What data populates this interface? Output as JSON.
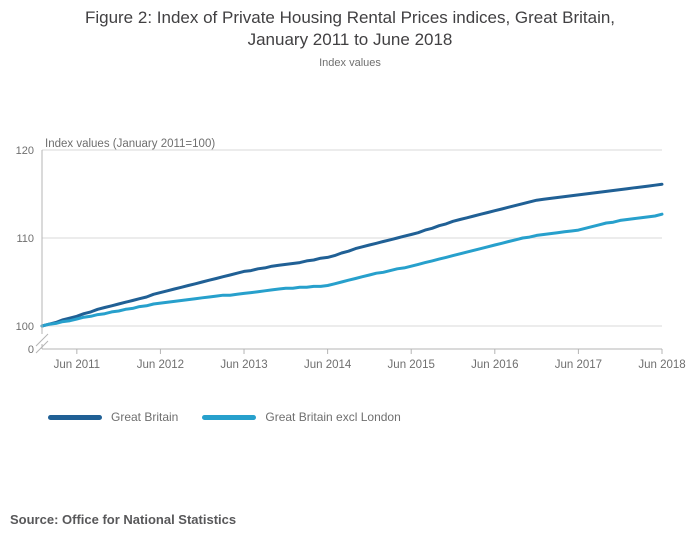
{
  "page": {
    "title_line1": "Figure 2: Index of Private Housing Rental Prices indices, Great Britain,",
    "title_line2": "January 2011 to June 2018",
    "subtitle": "Index values",
    "source": "Source: Office for National Statistics"
  },
  "chart_data": {
    "type": "line",
    "axis_label": "Index values (January 2011=100)",
    "x_start": "January 2011",
    "x_end": "June 2018",
    "x_unit": "month",
    "points_per_series": 90,
    "ylim_displayed": [
      100,
      120
    ],
    "grid": "horizontal",
    "legend_position": "bottom-left",
    "y_axis": {
      "ticks": [
        120,
        110,
        100
      ],
      "zero_label": "0",
      "has_break": true
    },
    "x_ticks": [
      {
        "label": "Jun 2011",
        "month_index": 5
      },
      {
        "label": "Jun 2012",
        "month_index": 17
      },
      {
        "label": "Jun 2013",
        "month_index": 29
      },
      {
        "label": "Jun 2014",
        "month_index": 41
      },
      {
        "label": "Jun 2015",
        "month_index": 53
      },
      {
        "label": "Jun 2016",
        "month_index": 65
      },
      {
        "label": "Jun 2017",
        "month_index": 77
      },
      {
        "label": "Jun 2018",
        "month_index": 89
      }
    ],
    "series": [
      {
        "name": "Great Britain",
        "color": "#206095",
        "values": [
          100.0,
          100.2,
          100.4,
          100.7,
          100.9,
          101.1,
          101.4,
          101.6,
          101.9,
          102.1,
          102.3,
          102.5,
          102.7,
          102.9,
          103.1,
          103.3,
          103.6,
          103.8,
          104.0,
          104.2,
          104.4,
          104.6,
          104.8,
          105.0,
          105.2,
          105.4,
          105.6,
          105.8,
          106.0,
          106.2,
          106.3,
          106.5,
          106.6,
          106.8,
          106.9,
          107.0,
          107.1,
          107.2,
          107.4,
          107.5,
          107.7,
          107.8,
          108.0,
          108.3,
          108.5,
          108.8,
          109.0,
          109.2,
          109.4,
          109.6,
          109.8,
          110.0,
          110.2,
          110.4,
          110.6,
          110.9,
          111.1,
          111.4,
          111.6,
          111.9,
          112.1,
          112.3,
          112.5,
          112.7,
          112.9,
          113.1,
          113.3,
          113.5,
          113.7,
          113.9,
          114.1,
          114.3,
          114.4,
          114.5,
          114.6,
          114.7,
          114.8,
          114.9,
          115.0,
          115.1,
          115.2,
          115.3,
          115.4,
          115.5,
          115.6,
          115.7,
          115.8,
          115.9,
          116.0,
          116.1
        ]
      },
      {
        "name": "Great Britain excl London",
        "color": "#27a0cc",
        "values": [
          100.0,
          100.2,
          100.3,
          100.5,
          100.6,
          100.8,
          101.0,
          101.1,
          101.3,
          101.4,
          101.6,
          101.7,
          101.9,
          102.0,
          102.2,
          102.3,
          102.5,
          102.6,
          102.7,
          102.8,
          102.9,
          103.0,
          103.1,
          103.2,
          103.3,
          103.4,
          103.5,
          103.5,
          103.6,
          103.7,
          103.8,
          103.9,
          104.0,
          104.1,
          104.2,
          104.3,
          104.3,
          104.4,
          104.4,
          104.5,
          104.5,
          104.6,
          104.8,
          105.0,
          105.2,
          105.4,
          105.6,
          105.8,
          106.0,
          106.1,
          106.3,
          106.5,
          106.6,
          106.8,
          107.0,
          107.2,
          107.4,
          107.6,
          107.8,
          108.0,
          108.2,
          108.4,
          108.6,
          108.8,
          109.0,
          109.2,
          109.4,
          109.6,
          109.8,
          110.0,
          110.1,
          110.3,
          110.4,
          110.5,
          110.6,
          110.7,
          110.8,
          110.9,
          111.1,
          111.3,
          111.5,
          111.7,
          111.8,
          112.0,
          112.1,
          112.2,
          112.3,
          112.4,
          112.5,
          112.7
        ]
      }
    ]
  },
  "legend": {
    "items": [
      {
        "label": "Great Britain",
        "color": "#206095"
      },
      {
        "label": "Great Britain excl London",
        "color": "#27a0cc"
      }
    ]
  },
  "colors": {
    "gridline": "#d8d8d8",
    "axis": "#b4b4b4",
    "tick_text": "#6f6f6f",
    "title_text": "#414042",
    "source_text": "#58585a"
  }
}
